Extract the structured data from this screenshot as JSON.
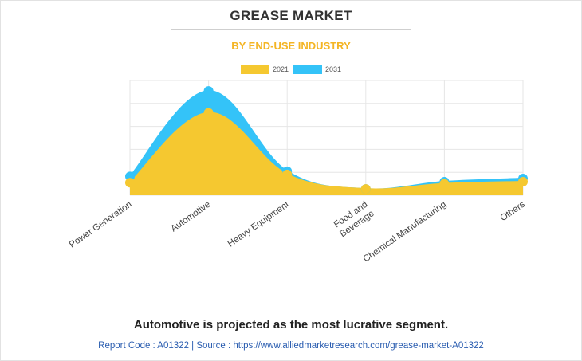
{
  "header": {
    "title": "GREASE MARKET",
    "subtitle": "BY END-USE INDUSTRY"
  },
  "chart_data": {
    "type": "area",
    "categories": [
      "Power Generation",
      "Automotive",
      "Heavy Equipment",
      "Food and Beverage",
      "Chemical Manufacturing",
      "Others"
    ],
    "category_lines": [
      [
        "Power Generation"
      ],
      [
        "Automotive"
      ],
      [
        "Heavy Equipment"
      ],
      [
        "Food and",
        "Beverage"
      ],
      [
        "Chemical Manufacturing"
      ],
      [
        "Others"
      ]
    ],
    "series": [
      {
        "name": "2021",
        "color": "#f5c830",
        "values": [
          12,
          79,
          20,
          6,
          11,
          13
        ]
      },
      {
        "name": "2031",
        "color": "#34c3f8",
        "values": [
          18,
          100,
          23,
          6,
          13,
          16
        ]
      }
    ],
    "ylim": [
      0,
      110
    ],
    "grid": true,
    "legend_position": "top-center",
    "smooth": true
  },
  "footer": {
    "headline": "Automotive is projected as the most lucrative segment.",
    "source": "Report Code : A01322  |  Source : https://www.alliedmarketresearch.com/grease-market-A01322"
  }
}
